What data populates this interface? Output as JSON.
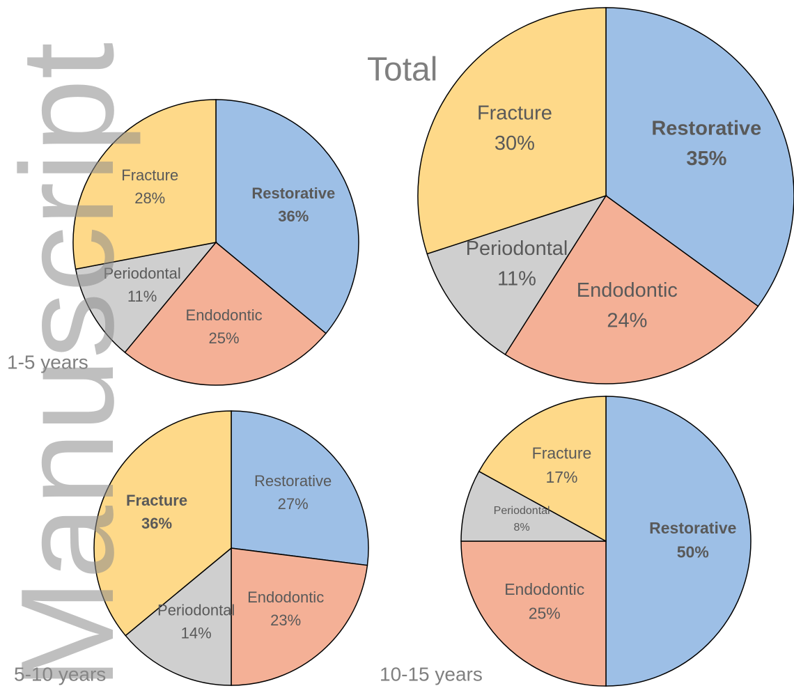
{
  "watermark": "Manuscript",
  "chart_data": [
    {
      "type": "pie",
      "title": "1-5 years",
      "categories": [
        "Restorative",
        "Endodontic",
        "Periodontal",
        "Fracture"
      ],
      "values": [
        36,
        25,
        11,
        28
      ],
      "value_labels": [
        "36%",
        "25%",
        "11%",
        "28%"
      ],
      "colors": [
        "#9dbfe6",
        "#f4b096",
        "#cfcfcf",
        "#fed989"
      ]
    },
    {
      "type": "pie",
      "title": "Total",
      "categories": [
        "Restorative",
        "Endodontic",
        "Periodontal",
        "Fracture"
      ],
      "values": [
        35,
        24,
        11,
        30
      ],
      "value_labels": [
        "35%",
        "24%",
        "11%",
        "30%"
      ],
      "colors": [
        "#9dbfe6",
        "#f4b096",
        "#cfcfcf",
        "#fed989"
      ]
    },
    {
      "type": "pie",
      "title": "5-10 years",
      "categories": [
        "Restorative",
        "Endodontic",
        "Periodontal",
        "Fracture"
      ],
      "values": [
        27,
        23,
        14,
        36
      ],
      "value_labels": [
        "27%",
        "23%",
        "14%",
        "36%"
      ],
      "colors": [
        "#9dbfe6",
        "#f4b096",
        "#cfcfcf",
        "#fed989"
      ]
    },
    {
      "type": "pie",
      "title": "10-15 years",
      "categories": [
        "Restorative",
        "Endodontic",
        "Periodontal",
        "Fracture"
      ],
      "values": [
        50,
        25,
        8,
        17
      ],
      "value_labels": [
        "50%",
        "25%",
        "8%",
        "17%"
      ],
      "colors": [
        "#9dbfe6",
        "#f4b096",
        "#cfcfcf",
        "#fed989"
      ]
    }
  ]
}
